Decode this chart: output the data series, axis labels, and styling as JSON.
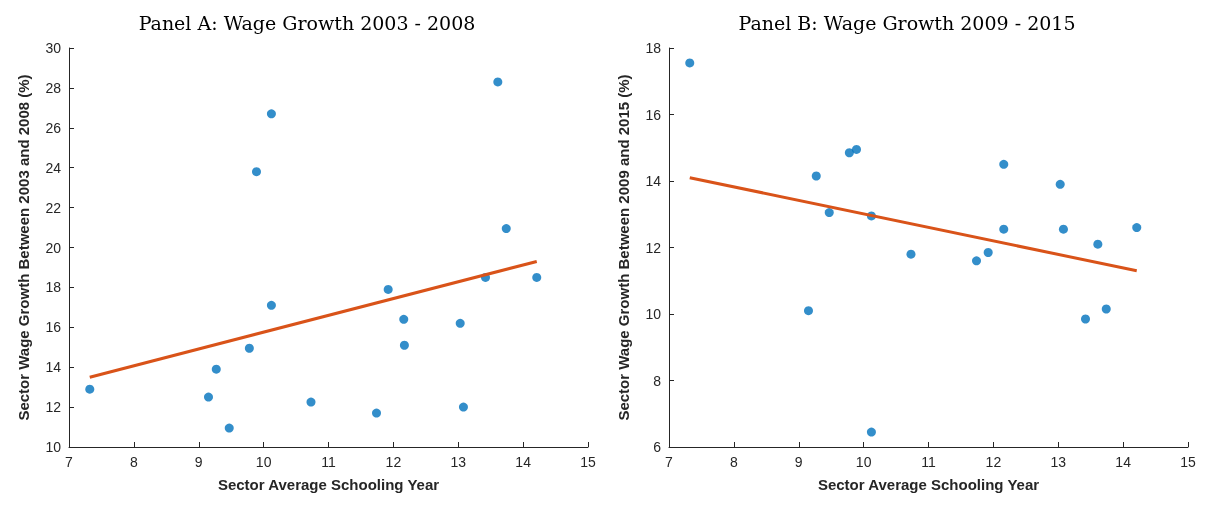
{
  "chart_data": [
    {
      "type": "scatter",
      "title": "Panel A: Wage Growth 2003 - 2008",
      "xlabel": "Sector Average Schooling Year",
      "ylabel": "Sector Wage Growth Between 2003 and 2008 (%)",
      "xlim": [
        7,
        15
      ],
      "xticks": [
        7,
        8,
        9,
        10,
        11,
        12,
        13,
        14,
        15
      ],
      "ylim": [
        10,
        30
      ],
      "yticks": [
        10,
        12,
        14,
        16,
        18,
        20,
        22,
        24,
        26,
        28,
        30
      ],
      "grid": false,
      "series": [
        {
          "marker": "circle",
          "color": "#0072bd",
          "x": [
            7.32,
            9.15,
            9.27,
            9.47,
            9.78,
            9.89,
            10.12,
            10.12,
            10.73,
            11.74,
            11.92,
            12.16,
            12.17,
            13.03,
            13.08,
            13.42,
            13.61,
            13.74,
            14.21
          ],
          "values": [
            12.9,
            12.5,
            13.9,
            10.95,
            14.95,
            23.8,
            26.7,
            17.1,
            12.25,
            11.7,
            17.9,
            16.4,
            15.1,
            16.2,
            12.0,
            18.5,
            28.3,
            20.95,
            18.5
          ]
        },
        {
          "type": "line",
          "marker": "none",
          "color": "#d95319",
          "line_style": "solid",
          "x": [
            7.32,
            14.21
          ],
          "values": [
            13.5,
            19.3
          ]
        }
      ]
    },
    {
      "type": "scatter",
      "title": "Panel B: Wage Growth 2009 - 2015",
      "xlabel": "Sector Average Schooling Year",
      "ylabel": "Sector Wage Growth Between 2009 and 2015 (%)",
      "xlim": [
        7,
        15
      ],
      "xticks": [
        7,
        8,
        9,
        10,
        11,
        12,
        13,
        14,
        15
      ],
      "ylim": [
        6,
        18
      ],
      "yticks": [
        6,
        8,
        10,
        12,
        14,
        16,
        18
      ],
      "grid": false,
      "series": [
        {
          "marker": "circle",
          "color": "#0072bd",
          "x": [
            7.32,
            9.15,
            9.27,
            9.47,
            9.78,
            9.89,
            10.12,
            10.12,
            10.73,
            11.74,
            11.92,
            12.16,
            12.16,
            13.03,
            13.08,
            13.42,
            13.61,
            13.74,
            14.21
          ],
          "values": [
            17.55,
            10.1,
            14.15,
            13.05,
            14.85,
            14.95,
            12.95,
            6.45,
            11.8,
            11.6,
            11.85,
            14.5,
            12.55,
            13.9,
            12.55,
            9.85,
            12.1,
            10.15,
            12.6
          ]
        },
        {
          "type": "line",
          "marker": "none",
          "color": "#d95319",
          "line_style": "solid",
          "x": [
            7.32,
            14.21
          ],
          "values": [
            14.1,
            11.3
          ]
        }
      ]
    }
  ]
}
